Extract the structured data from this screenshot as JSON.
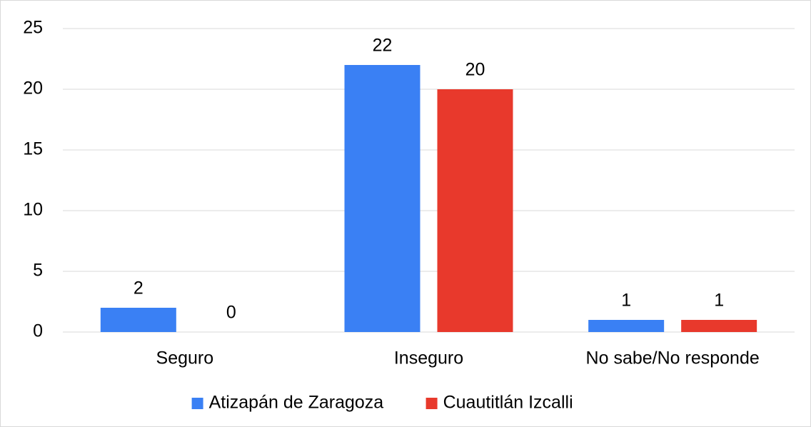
{
  "chart_data": {
    "type": "bar",
    "categories": [
      "Seguro",
      "Inseguro",
      "No sabe/No responde"
    ],
    "series": [
      {
        "name": "Atizapán de Zaragoza",
        "color": "#3a80f4",
        "values": [
          2,
          22,
          1
        ]
      },
      {
        "name": "Cuautitlán Izcalli",
        "color": "#e8392c",
        "values": [
          0,
          20,
          1
        ]
      }
    ],
    "ylim": [
      0,
      25
    ],
    "yticks": [
      0,
      5,
      10,
      15,
      20,
      25
    ],
    "grid": true,
    "legend": "bottom"
  }
}
